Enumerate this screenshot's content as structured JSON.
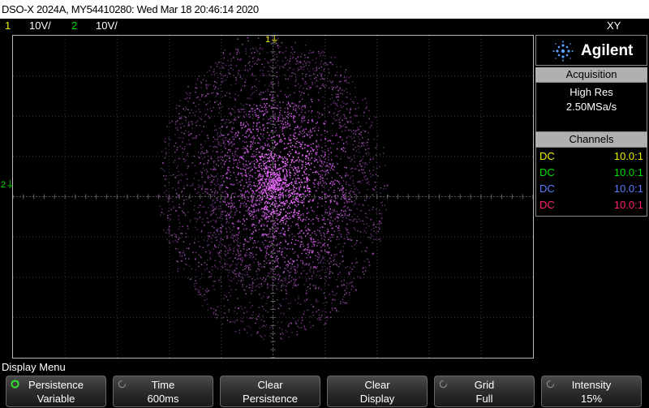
{
  "title_bar": {
    "text": "DSO-X 2024A, MY54410280: Wed Mar 18 20:46:14 2020"
  },
  "channel_bar": {
    "ch1_num": "1",
    "ch1_scale": "10V/",
    "ch2_num": "2",
    "ch2_scale": "10V/",
    "mode": "XY"
  },
  "markers": {
    "ch1": "1",
    "ch2": "2"
  },
  "brand": {
    "name": "Agilent"
  },
  "acquisition": {
    "header": "Acquisition",
    "mode": "High Res",
    "rate": "2.50MSa/s"
  },
  "channels": {
    "header": "Channels",
    "rows": [
      {
        "coupling": "DC",
        "ratio": "10.0:1",
        "color": "#f0f000"
      },
      {
        "coupling": "DC",
        "ratio": "10.0:1",
        "color": "#00e000"
      },
      {
        "coupling": "DC",
        "ratio": "10.0:1",
        "color": "#5a7dff"
      },
      {
        "coupling": "DC",
        "ratio": "10.0:1",
        "color": "#ff2070"
      }
    ]
  },
  "menu": {
    "title": "Display Menu"
  },
  "softkeys": [
    {
      "line1": "Persistence",
      "line2": "Variable"
    },
    {
      "line1": "Time",
      "line2": "600ms"
    },
    {
      "line1": "Clear",
      "line2": "Persistence"
    },
    {
      "line1": "Clear",
      "line2": "Display"
    },
    {
      "line1": "Grid",
      "line2": "Full"
    },
    {
      "line1": "Intensity",
      "line2": "15%"
    }
  ],
  "colors": {
    "ch1": "#f0f000",
    "ch2": "#00e000",
    "trace": "#e040f0",
    "accent": "#5aa0ff"
  }
}
